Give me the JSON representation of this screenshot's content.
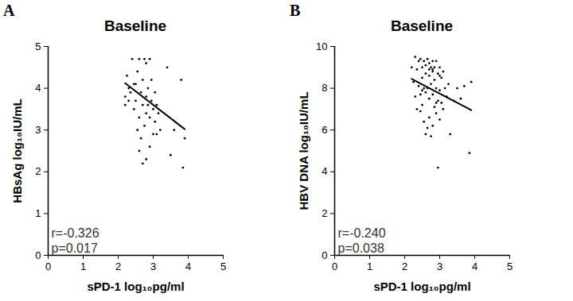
{
  "chart_data": [
    {
      "type": "scatter",
      "panel_label": "A",
      "title": "Baseline",
      "x_label": "sPD-1 log₁₀pg/ml",
      "y_label": "HBsAg log₁₀IU/mL",
      "xlim": [
        0,
        5
      ],
      "xticks": [
        0,
        1,
        2,
        3,
        4,
        5
      ],
      "ylim": [
        0,
        5
      ],
      "yticks": [
        0,
        1,
        2,
        3,
        4,
        5
      ],
      "color": "#000000",
      "marker": "circle",
      "x": [
        2.2,
        2.2,
        2.25,
        2.3,
        2.35,
        2.4,
        2.45,
        2.5,
        2.5,
        2.55,
        2.6,
        2.6,
        2.6,
        2.65,
        2.65,
        2.7,
        2.7,
        2.7,
        2.75,
        2.75,
        2.8,
        2.8,
        2.8,
        2.8,
        2.85,
        2.85,
        2.9,
        2.9,
        2.9,
        2.95,
        2.95,
        3.0,
        3.0,
        3.05,
        3.05,
        3.1,
        3.1,
        3.15,
        3.2,
        3.4,
        3.5,
        3.6,
        3.8,
        3.85,
        3.9,
        2.3,
        2.55,
        2.45
      ],
      "values": [
        3.6,
        3.8,
        4.3,
        4.0,
        3.9,
        4.7,
        3.5,
        4.1,
        3.7,
        4.4,
        4.7,
        3.3,
        2.5,
        3.9,
        2.8,
        4.2,
        3.6,
        2.2,
        4.7,
        3.1,
        4.6,
        3.8,
        3.4,
        2.3,
        4.0,
        3.6,
        4.7,
        3.3,
        2.6,
        4.2,
        3.7,
        3.5,
        2.9,
        3.9,
        3.2,
        3.6,
        2.9,
        3.4,
        3.0,
        4.5,
        2.4,
        3.0,
        4.2,
        2.1,
        2.8,
        3.7,
        3.0,
        4.1
      ],
      "trend_line": {
        "x": [
          2.2,
          3.9
        ],
        "values": [
          4.12,
          3.02
        ]
      },
      "annotations": [
        "r=-0.326",
        "p=0.017"
      ]
    },
    {
      "type": "scatter",
      "panel_label": "B",
      "title": "Baseline",
      "x_label": "sPD-1 log₁₀pg/ml",
      "y_label": "HBV DNA log₁₀IU/mL",
      "xlim": [
        0,
        5
      ],
      "xticks": [
        0,
        1,
        2,
        3,
        4,
        5
      ],
      "ylim": [
        0,
        10
      ],
      "yticks": [
        0,
        2,
        4,
        6,
        8,
        10
      ],
      "color": "#000000",
      "marker": "circle",
      "x": [
        2.2,
        2.25,
        2.3,
        2.3,
        2.35,
        2.4,
        2.4,
        2.45,
        2.45,
        2.5,
        2.5,
        2.5,
        2.55,
        2.55,
        2.6,
        2.6,
        2.6,
        2.6,
        2.65,
        2.65,
        2.7,
        2.7,
        2.7,
        2.7,
        2.75,
        2.75,
        2.75,
        2.8,
        2.8,
        2.8,
        2.8,
        2.85,
        2.85,
        2.85,
        2.9,
        2.9,
        2.9,
        2.95,
        2.95,
        2.95,
        3.0,
        3.0,
        3.0,
        3.05,
        3.05,
        3.1,
        3.1,
        3.15,
        3.2,
        3.25,
        3.3,
        3.4,
        3.5,
        3.6,
        3.7,
        3.85,
        3.9,
        2.35,
        2.5,
        2.65,
        2.8,
        2.9,
        3.0,
        2.55,
        2.7,
        2.45
      ],
      "values": [
        9.0,
        8.3,
        9.5,
        7.6,
        8.9,
        9.3,
        8.1,
        9.4,
        6.9,
        9.0,
        8.5,
        7.2,
        9.3,
        6.4,
        9.1,
        8.7,
        7.8,
        5.8,
        9.4,
        8.0,
        9.2,
        8.6,
        7.5,
        6.6,
        9.0,
        8.2,
        5.7,
        9.3,
        8.8,
        7.7,
        6.2,
        9.0,
        8.4,
        7.1,
        9.3,
        8.0,
        6.8,
        8.7,
        7.4,
        4.2,
        9.0,
        7.9,
        6.5,
        8.5,
        7.3,
        8.8,
        7.0,
        8.0,
        7.6,
        8.2,
        5.8,
        7.4,
        8.0,
        7.5,
        8.1,
        4.9,
        8.3,
        7.0,
        7.9,
        6.1,
        8.9,
        7.3,
        8.6,
        8.0,
        8.9,
        7.7
      ],
      "trend_line": {
        "x": [
          2.2,
          3.9
        ],
        "values": [
          8.45,
          6.95
        ]
      },
      "annotations": [
        "r=-0.240",
        "p=0.038"
      ]
    }
  ]
}
